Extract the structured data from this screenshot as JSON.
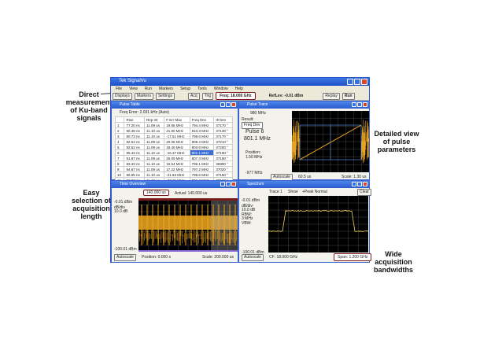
{
  "callouts": {
    "ku": "Direct measurement of Ku-band signals",
    "acq": "Easy selection of acquisition length",
    "pulse": "Detailed view of pulse parameters",
    "bw": "Wide acquisition bandwidths"
  },
  "window": {
    "title": "Tek SignalVu",
    "menu": [
      "File",
      "View",
      "Run",
      "Markers",
      "Setup",
      "Tools",
      "Window",
      "Help"
    ],
    "toolbar": {
      "displays": "Displays",
      "markers": "Markers",
      "settings": "Settings",
      "acq": "Acq",
      "trig": "Trig",
      "freq": "Freq: 18.000 GHz",
      "reflev": "RefLev: -0.01 dBm",
      "replay": "Replay",
      "run": "Run"
    }
  },
  "pulse_table": {
    "title": "Pulse Table",
    "freq_error": "Freq Error: 2.031 kHz (Auto)",
    "columns": [
      "",
      "Rise",
      "Rep Int",
      "F Err Max",
      "Freq Dev",
      "Φ Dev"
    ],
    "rows": [
      [
        "1",
        "77.20 ns",
        "11.09 us",
        "19.85 MHz",
        "794.4 MHz",
        "37170 °"
      ],
      [
        "2",
        "90.48 ns",
        "11.10 us",
        "21.80 MHz",
        "810.3 MHz",
        "37130 °"
      ],
      [
        "3",
        "80.73 ns",
        "11.10 us",
        "-17.51 MHz",
        "798.6 MHz",
        "37170 °"
      ],
      [
        "4",
        "82.54 ns",
        "11.09 us",
        "20.05 MHz",
        "809.4 MHz",
        "37210 °"
      ],
      [
        "5",
        "92.52 ns",
        "11.09 us",
        "18.40 MHz",
        "803.9 MHz",
        "37200 °"
      ],
      [
        "6",
        "85.42 ns",
        "11.10 us",
        "-16.37 MHz",
        "801.1 MHz",
        "37190 °"
      ],
      [
        "7",
        "91.87 ns",
        "11.09 us",
        "25.09 MHz",
        "807.3 MHz",
        "37190 °"
      ],
      [
        "8",
        "83.33 ns",
        "11.10 us",
        "15.64 MHz",
        "796.1 MHz",
        "36990 °"
      ],
      [
        "9",
        "94.67 ns",
        "11.09 us",
        "17.22 MHz",
        "797.2 MHz",
        "37020 °"
      ],
      [
        "10",
        "86.85 ns",
        "11.10 us",
        "-21.63 MHz",
        "799.6 MHz",
        "37150 °"
      ],
      [
        "11",
        "90.23 ns",
        "11.10 us",
        "-23.21 MHz",
        "801.4 MHz",
        "37180 °"
      ]
    ],
    "selected_row": 6
  },
  "pulse_trace": {
    "title": "Pulse Trace",
    "top": "980 MHz",
    "result_label": "Result:",
    "result": "Freq Dev",
    "pulse": "Pulse 6",
    "value": "801.1 MHz",
    "position": "Position:",
    "pos_val": "1.50 MHz",
    "bottom": "-977 MHz",
    "autoscale": "Autoscale",
    "offset": "60.5 us",
    "scale": "Scale: 1.30 us"
  },
  "time_overview": {
    "title": "Time Overview",
    "length": "140.000 us",
    "actual": "Actual: 140.000 us",
    "ref": "-0.01 dBm",
    "div_label": "dB/div",
    "div": "10.0 dB",
    "bottom": "-100.01 dBm",
    "autoscale": "Autoscale",
    "position": "Position: 0.000 s",
    "scale": "Scale: 200.000 us"
  },
  "spectrum": {
    "title": "Spectrum",
    "trace": "Trace 1",
    "show": "Show",
    "detector": "+Peak Normal",
    "clear": "Clear",
    "ref": "-0.01 dBm",
    "div_label": "dB/div:",
    "div": "10.0 dB",
    "rbw_label": "RBW:",
    "rbw": "3 MHz",
    "vbw": "VBW:",
    "bottom": "-100.01 dBm",
    "autoscale": "Autoscale",
    "cf": "CF: 18.000 GHz",
    "span": "Span: 1.200 GHz"
  },
  "colors": {
    "trace": "#f0a820",
    "highlight": "#7a1a1a",
    "titlebar": "#2a5cd0"
  }
}
